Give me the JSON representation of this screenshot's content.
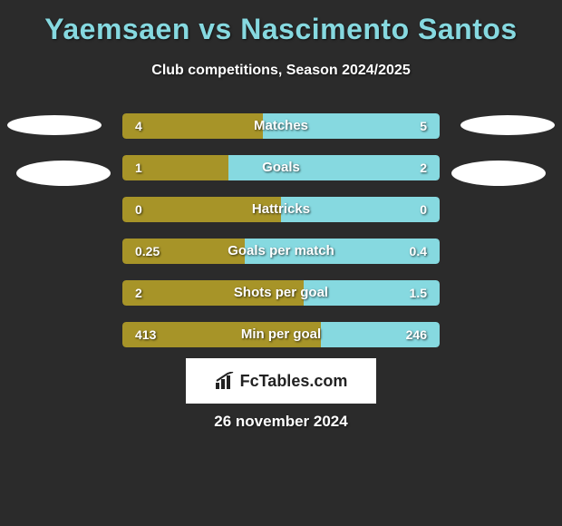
{
  "title": "Yaemsaen vs Nascimento Santos",
  "subtitle": "Club competitions, Season 2024/2025",
  "date": "26 november 2024",
  "logo_text": "FcTables.com",
  "colors": {
    "background": "#2b2b2b",
    "title": "#86d9e0",
    "text": "#ffffff",
    "left_bar": "#a79428",
    "right_bar": "#86d9e0",
    "avatar": "#ffffff",
    "logo_bg": "#ffffff",
    "logo_text": "#222222"
  },
  "avatars": {
    "left": {
      "color": "#ffffff"
    },
    "right": {
      "color": "#ffffff"
    }
  },
  "stats": [
    {
      "label": "Matches",
      "left_value": "4",
      "right_value": "5",
      "left_pct": 44.4,
      "right_pct": 55.6,
      "left_color": "#a79428",
      "right_color": "#86d9e0"
    },
    {
      "label": "Goals",
      "left_value": "1",
      "right_value": "2",
      "left_pct": 33.3,
      "right_pct": 66.7,
      "left_color": "#a79428",
      "right_color": "#86d9e0"
    },
    {
      "label": "Hattricks",
      "left_value": "0",
      "right_value": "0",
      "left_pct": 50,
      "right_pct": 50,
      "left_color": "#a79428",
      "right_color": "#86d9e0"
    },
    {
      "label": "Goals per match",
      "left_value": "0.25",
      "right_value": "0.4",
      "left_pct": 38.5,
      "right_pct": 61.5,
      "left_color": "#a79428",
      "right_color": "#86d9e0"
    },
    {
      "label": "Shots per goal",
      "left_value": "2",
      "right_value": "1.5",
      "left_pct": 57.1,
      "right_pct": 42.9,
      "left_color": "#a79428",
      "right_color": "#86d9e0"
    },
    {
      "label": "Min per goal",
      "left_value": "413",
      "right_value": "246",
      "left_pct": 62.7,
      "right_pct": 37.3,
      "left_color": "#a79428",
      "right_color": "#86d9e0"
    }
  ]
}
